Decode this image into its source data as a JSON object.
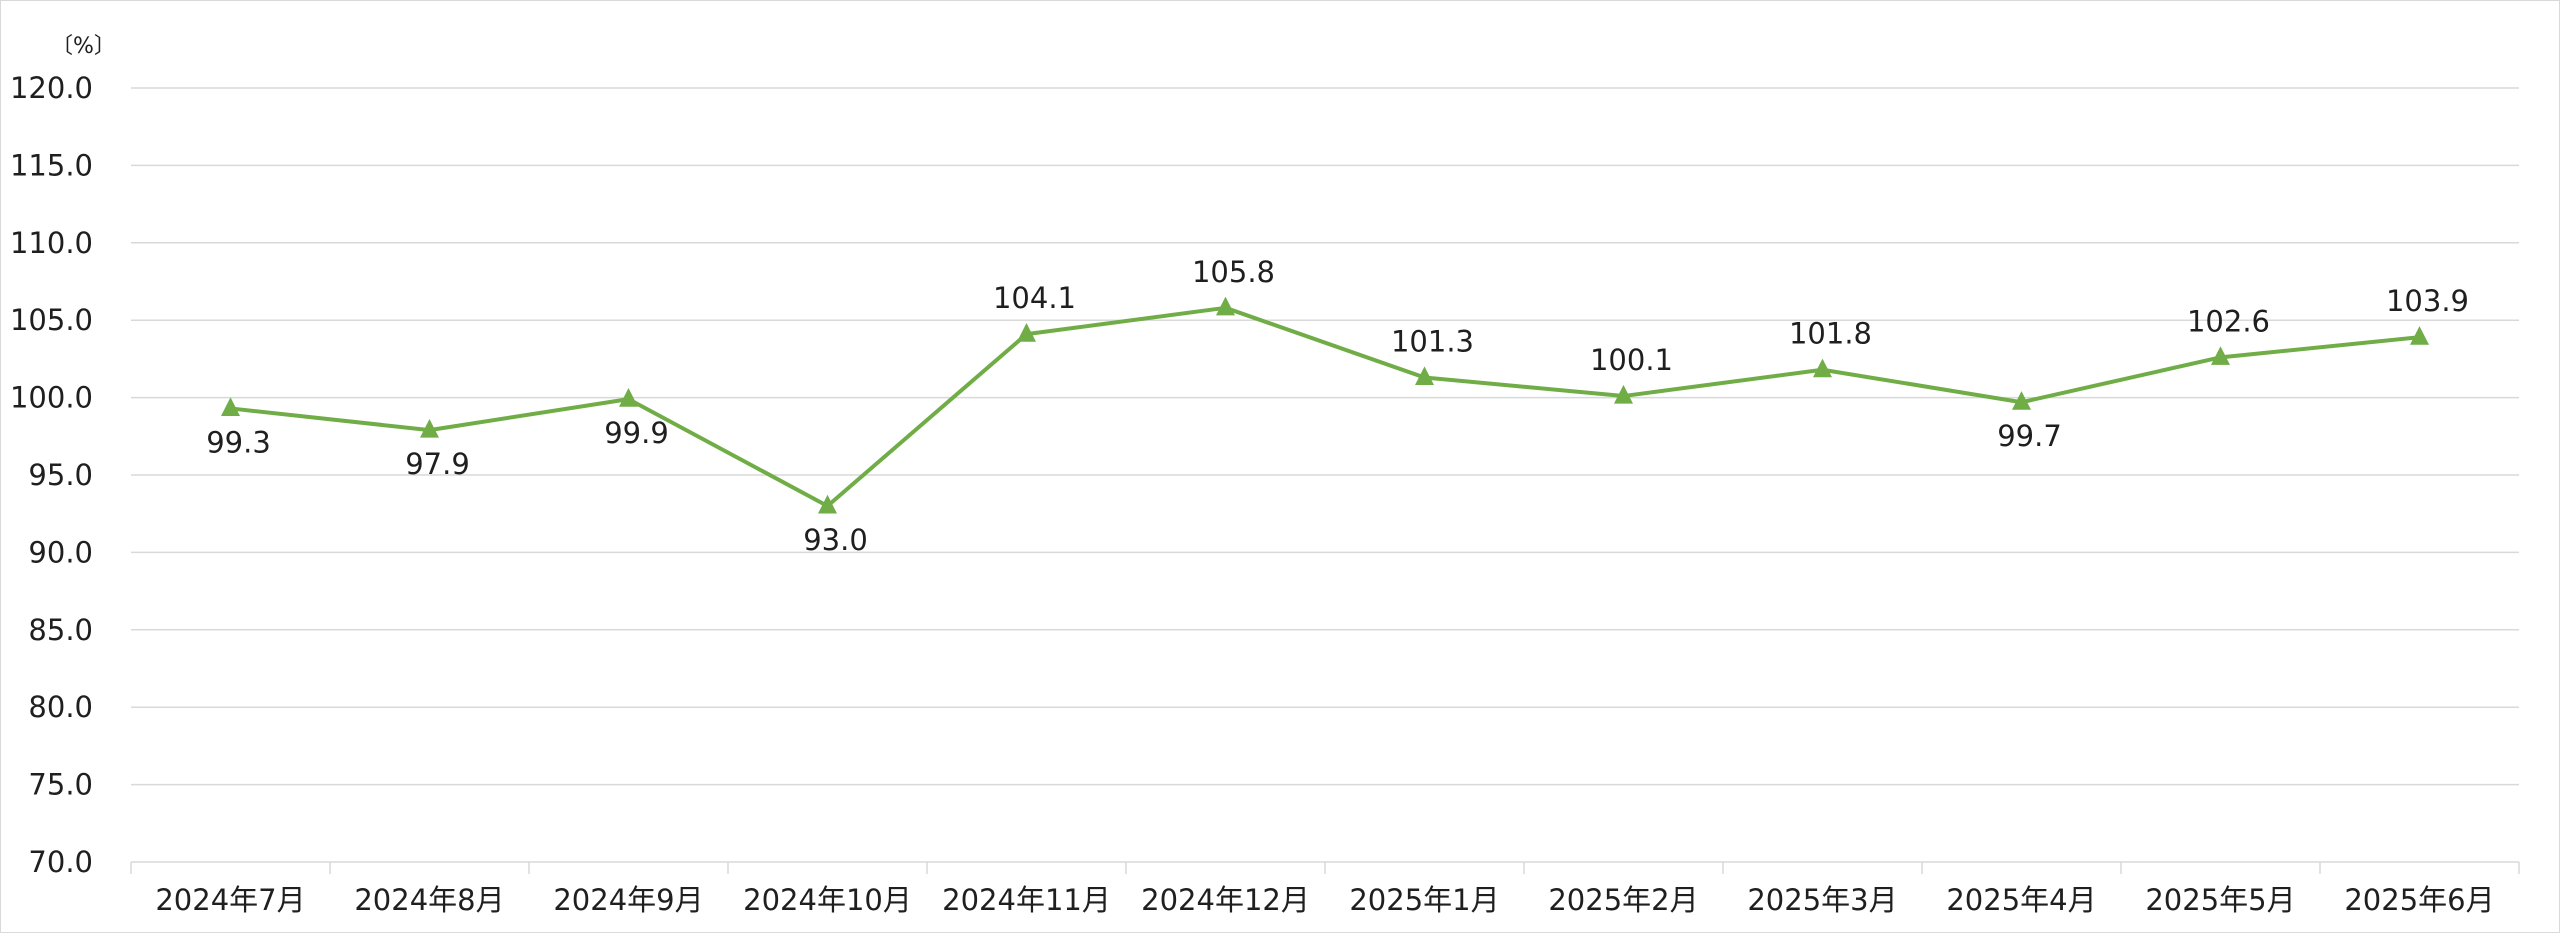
{
  "chart_data": {
    "type": "line",
    "title": "",
    "unit_label": "〔%〕",
    "categories": [
      "2024年7月",
      "2024年8月",
      "2024年9月",
      "2024年10月",
      "2024年11月",
      "2024年12月",
      "2025年1月",
      "2025年2月",
      "2025年3月",
      "2025年4月",
      "2025年5月",
      "2025年6月"
    ],
    "series": [
      {
        "values": [
          99.3,
          97.9,
          99.9,
          93.0,
          104.1,
          105.8,
          101.3,
          100.1,
          101.8,
          99.7,
          102.6,
          103.9
        ],
        "labels": [
          "99.3",
          "97.9",
          "99.9",
          "93.0",
          "104.1",
          "105.8",
          "101.3",
          "100.1",
          "101.8",
          "99.7",
          "102.6",
          "103.9"
        ],
        "label_positions": [
          "below",
          "below",
          "below",
          "below",
          "above",
          "above",
          "above",
          "above",
          "above",
          "below",
          "above",
          "above"
        ],
        "color": "#70AD47",
        "marker": "triangle"
      }
    ],
    "ylim": [
      70.0,
      120.0
    ],
    "yticks": [
      "70.0",
      "75.0",
      "80.0",
      "85.0",
      "90.0",
      "95.0",
      "100.0",
      "105.0",
      "110.0",
      "115.0",
      "120.0"
    ],
    "grid": true,
    "gridColor": "#d9d9d9"
  }
}
